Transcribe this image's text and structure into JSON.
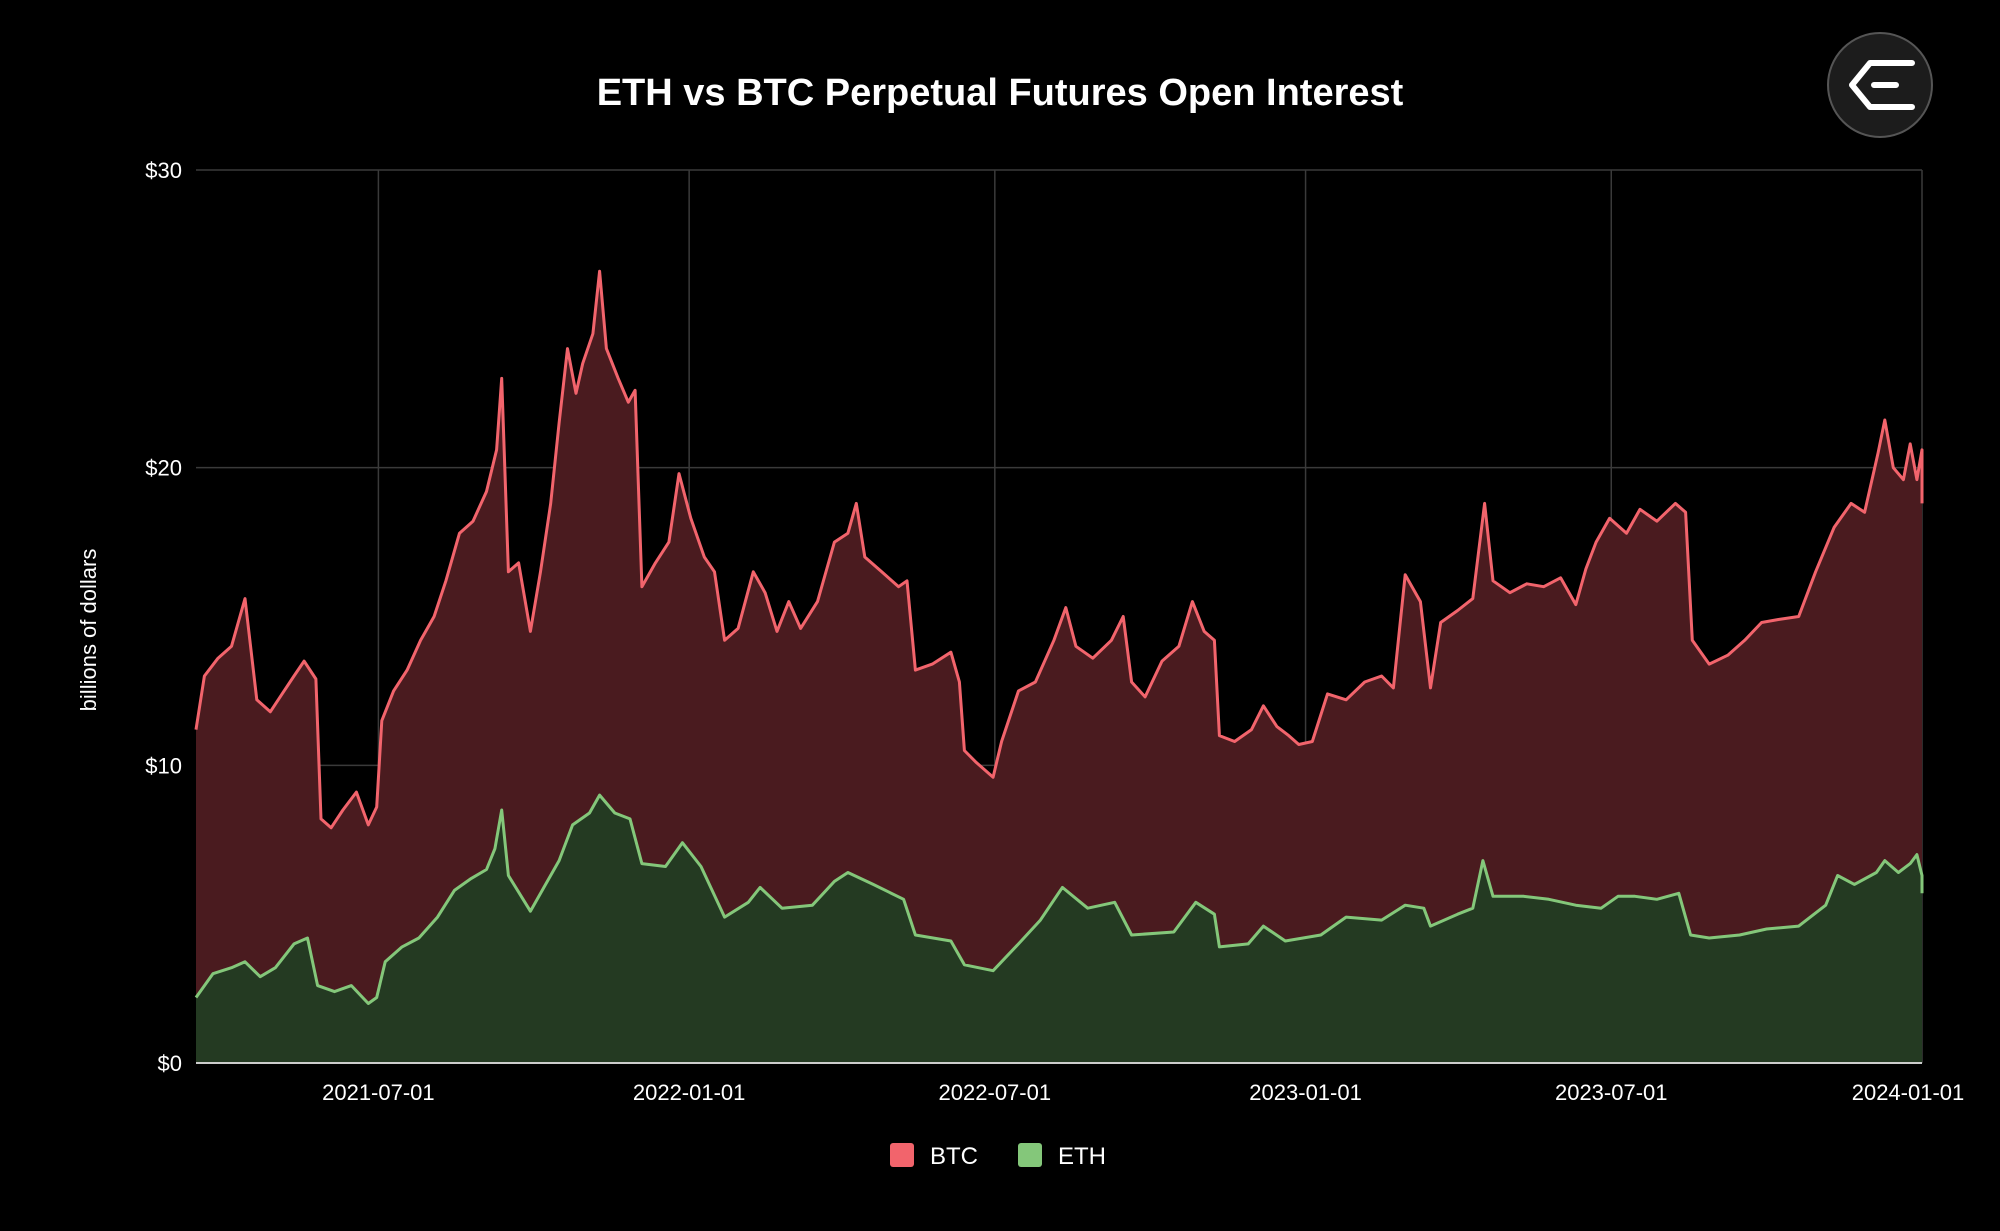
{
  "colors": {
    "background": "#000000",
    "grid": "#3a3a3a",
    "axis_text": "#ffffff",
    "btc_line": "#f2646c",
    "btc_fill": "#4a1b1f",
    "eth_line": "#84c77a",
    "eth_fill": "#243a22"
  },
  "logo": {
    "icon": "exchange-logo-icon"
  },
  "chart_data": {
    "type": "area",
    "title": "ETH vs BTC Perpetual Futures Open Interest",
    "xlabel": "",
    "ylabel": "billions of dollars",
    "x_range": [
      "2021-03-15",
      "2024-01-01"
    ],
    "ylim": [
      0,
      30
    ],
    "y_ticks": [
      {
        "value": 0,
        "label": "$0"
      },
      {
        "value": 10,
        "label": "$10"
      },
      {
        "value": 20,
        "label": "$20"
      },
      {
        "value": 30,
        "label": "$30"
      }
    ],
    "x_ticks": [
      "2021-07-01",
      "2022-01-01",
      "2022-07-01",
      "2023-01-01",
      "2023-07-01",
      "2024-01-01"
    ],
    "grid": true,
    "legend_position": "bottom-center",
    "series": [
      {
        "name": "BTC",
        "color": "#f2646c",
        "points": [
          [
            "2021-03-15",
            11.2
          ],
          [
            "2021-03-20",
            13.0
          ],
          [
            "2021-03-28",
            13.6
          ],
          [
            "2021-04-05",
            14.0
          ],
          [
            "2021-04-13",
            15.6
          ],
          [
            "2021-04-20",
            12.2
          ],
          [
            "2021-04-28",
            11.8
          ],
          [
            "2021-05-05",
            12.4
          ],
          [
            "2021-05-12",
            13.0
          ],
          [
            "2021-05-18",
            13.5
          ],
          [
            "2021-05-25",
            12.9
          ],
          [
            "2021-05-28",
            8.2
          ],
          [
            "2021-06-03",
            7.9
          ],
          [
            "2021-06-10",
            8.5
          ],
          [
            "2021-06-18",
            9.1
          ],
          [
            "2021-06-25",
            8.0
          ],
          [
            "2021-06-30",
            8.6
          ],
          [
            "2021-07-03",
            11.5
          ],
          [
            "2021-07-10",
            12.5
          ],
          [
            "2021-07-18",
            13.2
          ],
          [
            "2021-07-26",
            14.2
          ],
          [
            "2021-08-03",
            15.0
          ],
          [
            "2021-08-10",
            16.2
          ],
          [
            "2021-08-18",
            17.8
          ],
          [
            "2021-08-26",
            18.2
          ],
          [
            "2021-09-03",
            19.2
          ],
          [
            "2021-09-09",
            20.6
          ],
          [
            "2021-09-12",
            23.0
          ],
          [
            "2021-09-16",
            16.5
          ],
          [
            "2021-09-22",
            16.8
          ],
          [
            "2021-09-29",
            14.5
          ],
          [
            "2021-10-05",
            16.5
          ],
          [
            "2021-10-11",
            18.8
          ],
          [
            "2021-10-16",
            21.5
          ],
          [
            "2021-10-21",
            24.0
          ],
          [
            "2021-10-26",
            22.5
          ],
          [
            "2021-10-30",
            23.5
          ],
          [
            "2021-11-05",
            24.5
          ],
          [
            "2021-11-09",
            26.6
          ],
          [
            "2021-11-13",
            24.0
          ],
          [
            "2021-11-20",
            23.0
          ],
          [
            "2021-11-26",
            22.2
          ],
          [
            "2021-11-30",
            22.6
          ],
          [
            "2021-12-04",
            16.0
          ],
          [
            "2021-12-12",
            16.8
          ],
          [
            "2021-12-20",
            17.5
          ],
          [
            "2021-12-26",
            19.8
          ],
          [
            "2022-01-02",
            18.3
          ],
          [
            "2022-01-10",
            17.0
          ],
          [
            "2022-01-16",
            16.5
          ],
          [
            "2022-01-22",
            14.2
          ],
          [
            "2022-01-30",
            14.6
          ],
          [
            "2022-02-08",
            16.5
          ],
          [
            "2022-02-15",
            15.8
          ],
          [
            "2022-02-22",
            14.5
          ],
          [
            "2022-03-01",
            15.5
          ],
          [
            "2022-03-08",
            14.6
          ],
          [
            "2022-03-18",
            15.5
          ],
          [
            "2022-03-28",
            17.5
          ],
          [
            "2022-04-05",
            17.8
          ],
          [
            "2022-04-10",
            18.8
          ],
          [
            "2022-04-15",
            17.0
          ],
          [
            "2022-04-25",
            16.5
          ],
          [
            "2022-05-05",
            16.0
          ],
          [
            "2022-05-10",
            16.2
          ],
          [
            "2022-05-15",
            13.2
          ],
          [
            "2022-05-25",
            13.4
          ],
          [
            "2022-06-05",
            13.8
          ],
          [
            "2022-06-10",
            12.8
          ],
          [
            "2022-06-13",
            10.5
          ],
          [
            "2022-06-20",
            10.1
          ],
          [
            "2022-06-30",
            9.6
          ],
          [
            "2022-07-05",
            10.8
          ],
          [
            "2022-07-15",
            12.5
          ],
          [
            "2022-07-25",
            12.8
          ],
          [
            "2022-08-05",
            14.2
          ],
          [
            "2022-08-12",
            15.3
          ],
          [
            "2022-08-18",
            14.0
          ],
          [
            "2022-08-28",
            13.6
          ],
          [
            "2022-09-08",
            14.2
          ],
          [
            "2022-09-15",
            15.0
          ],
          [
            "2022-09-20",
            12.8
          ],
          [
            "2022-09-28",
            12.3
          ],
          [
            "2022-10-08",
            13.5
          ],
          [
            "2022-10-18",
            14.0
          ],
          [
            "2022-10-26",
            15.5
          ],
          [
            "2022-11-02",
            14.5
          ],
          [
            "2022-11-08",
            14.2
          ],
          [
            "2022-11-11",
            11.0
          ],
          [
            "2022-11-20",
            10.8
          ],
          [
            "2022-11-30",
            11.2
          ],
          [
            "2022-12-07",
            12.0
          ],
          [
            "2022-12-15",
            11.3
          ],
          [
            "2022-12-22",
            11.0
          ],
          [
            "2022-12-28",
            10.7
          ],
          [
            "2023-01-05",
            10.8
          ],
          [
            "2023-01-14",
            12.4
          ],
          [
            "2023-01-25",
            12.2
          ],
          [
            "2023-02-05",
            12.8
          ],
          [
            "2023-02-15",
            13.0
          ],
          [
            "2023-02-22",
            12.6
          ],
          [
            "2023-03-01",
            16.4
          ],
          [
            "2023-03-10",
            15.5
          ],
          [
            "2023-03-16",
            12.6
          ],
          [
            "2023-03-22",
            14.8
          ],
          [
            "2023-04-01",
            15.2
          ],
          [
            "2023-04-10",
            15.6
          ],
          [
            "2023-04-17",
            18.8
          ],
          [
            "2023-04-22",
            16.2
          ],
          [
            "2023-05-02",
            15.8
          ],
          [
            "2023-05-12",
            16.1
          ],
          [
            "2023-05-22",
            16.0
          ],
          [
            "2023-06-01",
            16.3
          ],
          [
            "2023-06-10",
            15.4
          ],
          [
            "2023-06-16",
            16.6
          ],
          [
            "2023-06-22",
            17.5
          ],
          [
            "2023-06-30",
            18.3
          ],
          [
            "2023-07-10",
            17.8
          ],
          [
            "2023-07-18",
            18.6
          ],
          [
            "2023-07-28",
            18.2
          ],
          [
            "2023-08-08",
            18.8
          ],
          [
            "2023-08-14",
            18.5
          ],
          [
            "2023-08-18",
            14.2
          ],
          [
            "2023-08-28",
            13.4
          ],
          [
            "2023-09-08",
            13.7
          ],
          [
            "2023-09-18",
            14.2
          ],
          [
            "2023-09-28",
            14.8
          ],
          [
            "2023-10-08",
            14.9
          ],
          [
            "2023-10-20",
            15.0
          ],
          [
            "2023-10-30",
            16.5
          ],
          [
            "2023-11-10",
            18.0
          ],
          [
            "2023-11-20",
            18.8
          ],
          [
            "2023-11-28",
            18.5
          ],
          [
            "2023-12-06",
            20.5
          ],
          [
            "2023-12-10",
            21.6
          ],
          [
            "2023-12-15",
            20.0
          ],
          [
            "2023-12-21",
            19.6
          ],
          [
            "2023-12-25",
            20.8
          ],
          [
            "2023-12-29",
            19.6
          ],
          [
            "2024-01-01",
            20.6
          ],
          [
            "2024-01-03",
            18.8
          ]
        ]
      },
      {
        "name": "ETH",
        "color": "#84c77a",
        "points": [
          [
            "2021-03-15",
            2.2
          ],
          [
            "2021-03-25",
            3.0
          ],
          [
            "2021-04-05",
            3.2
          ],
          [
            "2021-04-13",
            3.4
          ],
          [
            "2021-04-22",
            2.9
          ],
          [
            "2021-05-01",
            3.2
          ],
          [
            "2021-05-12",
            4.0
          ],
          [
            "2021-05-20",
            4.2
          ],
          [
            "2021-05-26",
            2.6
          ],
          [
            "2021-06-05",
            2.4
          ],
          [
            "2021-06-15",
            2.6
          ],
          [
            "2021-06-25",
            2.0
          ],
          [
            "2021-06-30",
            2.2
          ],
          [
            "2021-07-05",
            3.4
          ],
          [
            "2021-07-15",
            3.9
          ],
          [
            "2021-07-25",
            4.2
          ],
          [
            "2021-08-05",
            4.9
          ],
          [
            "2021-08-15",
            5.8
          ],
          [
            "2021-08-25",
            6.2
          ],
          [
            "2021-09-03",
            6.5
          ],
          [
            "2021-09-08",
            7.2
          ],
          [
            "2021-09-12",
            8.5
          ],
          [
            "2021-09-16",
            6.3
          ],
          [
            "2021-09-29",
            5.1
          ],
          [
            "2021-10-08",
            6.0
          ],
          [
            "2021-10-16",
            6.8
          ],
          [
            "2021-10-24",
            8.0
          ],
          [
            "2021-11-03",
            8.4
          ],
          [
            "2021-11-09",
            9.0
          ],
          [
            "2021-11-18",
            8.4
          ],
          [
            "2021-11-27",
            8.2
          ],
          [
            "2021-12-04",
            6.7
          ],
          [
            "2021-12-18",
            6.6
          ],
          [
            "2021-12-28",
            7.4
          ],
          [
            "2022-01-08",
            6.6
          ],
          [
            "2022-01-22",
            4.9
          ],
          [
            "2022-02-05",
            5.4
          ],
          [
            "2022-02-12",
            5.9
          ],
          [
            "2022-02-25",
            5.2
          ],
          [
            "2022-03-15",
            5.3
          ],
          [
            "2022-03-28",
            6.1
          ],
          [
            "2022-04-05",
            6.4
          ],
          [
            "2022-04-20",
            6.0
          ],
          [
            "2022-05-08",
            5.5
          ],
          [
            "2022-05-15",
            4.3
          ],
          [
            "2022-06-05",
            4.1
          ],
          [
            "2022-06-13",
            3.3
          ],
          [
            "2022-06-30",
            3.1
          ],
          [
            "2022-07-15",
            4.0
          ],
          [
            "2022-07-28",
            4.8
          ],
          [
            "2022-08-10",
            5.9
          ],
          [
            "2022-08-25",
            5.2
          ],
          [
            "2022-09-10",
            5.4
          ],
          [
            "2022-09-20",
            4.3
          ],
          [
            "2022-10-15",
            4.4
          ],
          [
            "2022-10-28",
            5.4
          ],
          [
            "2022-11-08",
            5.0
          ],
          [
            "2022-11-11",
            3.9
          ],
          [
            "2022-11-28",
            4.0
          ],
          [
            "2022-12-07",
            4.6
          ],
          [
            "2022-12-20",
            4.1
          ],
          [
            "2023-01-10",
            4.3
          ],
          [
            "2023-01-25",
            4.9
          ],
          [
            "2023-02-15",
            4.8
          ],
          [
            "2023-03-01",
            5.3
          ],
          [
            "2023-03-12",
            5.2
          ],
          [
            "2023-03-16",
            4.6
          ],
          [
            "2023-04-01",
            5.0
          ],
          [
            "2023-04-10",
            5.2
          ],
          [
            "2023-04-16",
            6.8
          ],
          [
            "2023-04-22",
            5.6
          ],
          [
            "2023-05-10",
            5.6
          ],
          [
            "2023-05-25",
            5.5
          ],
          [
            "2023-06-10",
            5.3
          ],
          [
            "2023-06-25",
            5.2
          ],
          [
            "2023-07-05",
            5.6
          ],
          [
            "2023-07-15",
            5.6
          ],
          [
            "2023-07-28",
            5.5
          ],
          [
            "2023-08-10",
            5.7
          ],
          [
            "2023-08-17",
            4.3
          ],
          [
            "2023-08-28",
            4.2
          ],
          [
            "2023-09-15",
            4.3
          ],
          [
            "2023-10-01",
            4.5
          ],
          [
            "2023-10-20",
            4.6
          ],
          [
            "2023-11-05",
            5.3
          ],
          [
            "2023-11-12",
            6.3
          ],
          [
            "2023-11-22",
            6.0
          ],
          [
            "2023-12-05",
            6.4
          ],
          [
            "2023-12-10",
            6.8
          ],
          [
            "2023-12-18",
            6.4
          ],
          [
            "2023-12-25",
            6.7
          ],
          [
            "2023-12-29",
            7.0
          ],
          [
            "2024-01-01",
            6.3
          ],
          [
            "2024-01-03",
            5.7
          ]
        ]
      }
    ]
  }
}
